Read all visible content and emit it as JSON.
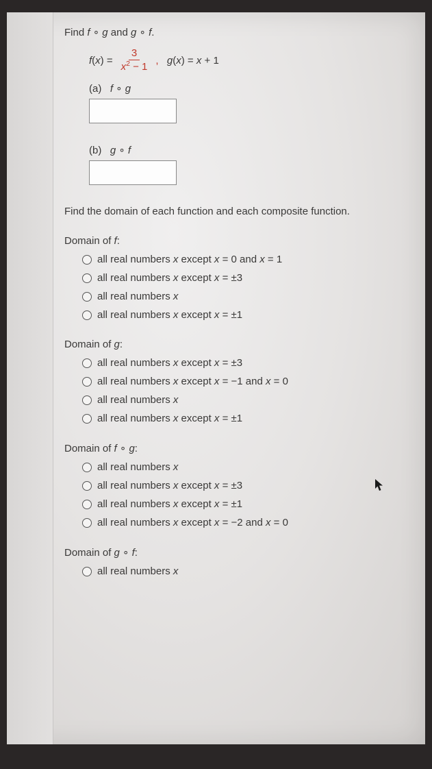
{
  "prompt": "Find f ∘ g and g ∘ f.",
  "formula": {
    "f_lhs": "f(x) = ",
    "frac_num": "3",
    "frac_den_pre": "x",
    "frac_den_exp": "2",
    "frac_den_post": " − 1",
    "sep": ",   ",
    "g": "g(x) = x + 1"
  },
  "parts": {
    "a_label": "(a)   f ∘ g",
    "b_label": "(b)   g ∘ f"
  },
  "section": "Find the domain of each function and each composite function.",
  "groups": [
    {
      "label": "Domain of f:",
      "options": [
        "all real numbers x except x = 0 and x = 1",
        "all real numbers x except x = ±3",
        "all real numbers x",
        "all real numbers x except x = ±1"
      ]
    },
    {
      "label": "Domain of g:",
      "options": [
        "all real numbers x except x = ±3",
        "all real numbers x except x = −1 and x = 0",
        "all real numbers x",
        "all real numbers x except x = ±1"
      ]
    },
    {
      "label": "Domain of f ∘ g:",
      "options": [
        "all real numbers x",
        "all real numbers x except x = ±3",
        "all real numbers x except x = ±1",
        "all real numbers x except x = −2 and x = 0"
      ]
    },
    {
      "label": "Domain of g ∘ f:",
      "options": [
        "all real numbers x"
      ]
    }
  ]
}
